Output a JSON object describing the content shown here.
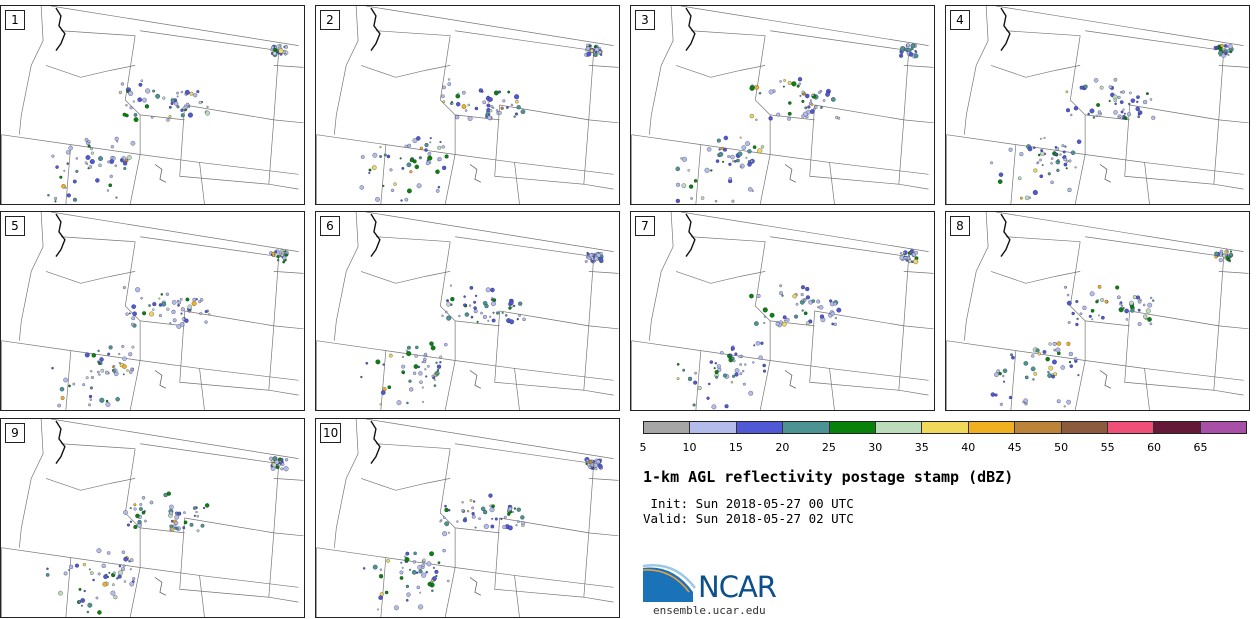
{
  "panels": [
    "1",
    "2",
    "3",
    "4",
    "5",
    "6",
    "7",
    "8",
    "9",
    "10"
  ],
  "colorbar": {
    "colors": [
      "#a6a6a6",
      "#b3bceb",
      "#5058d6",
      "#4c9494",
      "#08820b",
      "#bcdcbc",
      "#f0d85a",
      "#f0b020",
      "#bc8438",
      "#8c5a3c",
      "#f05078",
      "#661839",
      "#a850a8"
    ],
    "ticks": [
      "5",
      "10",
      "15",
      "20",
      "25",
      "30",
      "35",
      "40",
      "45",
      "50",
      "55",
      "60",
      "65"
    ]
  },
  "title": "1-km AGL reflectivity postage stamp (dBZ)",
  "init": " Init: Sun 2018-05-27 00 UTC",
  "valid": "Valid: Sun 2018-05-27 02 UTC",
  "logo": {
    "text": "NCAR",
    "url": "ensemble.ucar.edu"
  }
}
